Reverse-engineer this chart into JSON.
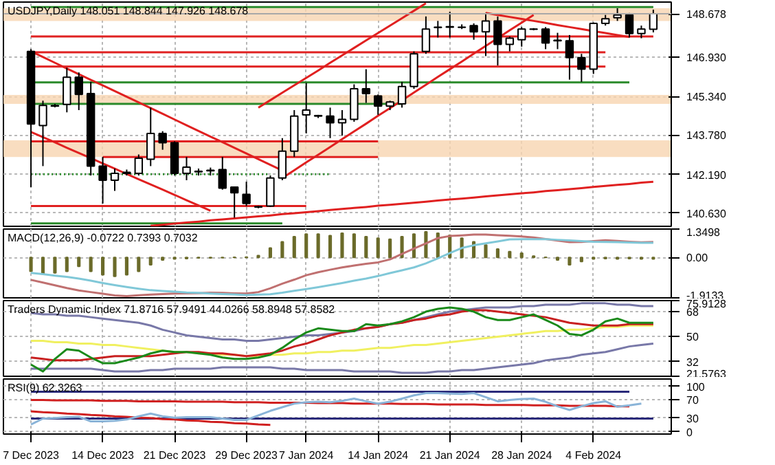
{
  "chart_data": [
    {
      "type": "candlestick",
      "title": "USDJPY,Daily  148.051 148.844 147.926 148.678",
      "ohlc": [
        [
          147.16,
          147.25,
          141.68,
          144.23
        ],
        [
          144.17,
          145.17,
          142.53,
          144.98
        ],
        [
          144.95,
          145.04,
          144.9,
          144.97
        ],
        [
          145.02,
          146.5,
          144.7,
          146.12
        ],
        [
          146.12,
          146.31,
          144.79,
          145.42
        ],
        [
          145.46,
          145.93,
          142.15,
          142.53
        ],
        [
          142.53,
          142.9,
          141.02,
          141.96
        ],
        [
          141.96,
          142.43,
          141.53,
          142.24
        ],
        [
          142.28,
          142.39,
          142.15,
          142.24
        ],
        [
          142.24,
          143.0,
          142.15,
          142.85
        ],
        [
          142.81,
          144.89,
          142.53,
          143.85
        ],
        [
          143.85,
          143.94,
          143.19,
          143.47
        ],
        [
          143.47,
          143.53,
          142.15,
          142.24
        ],
        [
          142.24,
          142.9,
          141.96,
          142.49
        ],
        [
          142.3,
          142.43,
          142.15,
          142.32
        ],
        [
          142.34,
          142.47,
          142.15,
          142.36
        ],
        [
          142.39,
          142.9,
          141.58,
          141.64
        ],
        [
          141.68,
          141.71,
          140.45,
          141.45
        ],
        [
          141.39,
          141.9,
          140.92,
          141.02
        ],
        [
          140.89,
          140.92,
          140.83,
          140.88
        ],
        [
          140.92,
          142.15,
          140.88,
          142.05
        ],
        [
          142.05,
          143.66,
          141.96,
          143.13
        ],
        [
          143.13,
          144.79,
          142.9,
          144.55
        ],
        [
          144.6,
          145.89,
          143.85,
          144.79
        ],
        [
          144.57,
          144.6,
          144.47,
          144.55
        ],
        [
          144.55,
          144.89,
          143.66,
          144.28
        ],
        [
          144.28,
          144.79,
          143.76,
          144.42
        ],
        [
          144.42,
          145.83,
          144.32,
          145.65
        ],
        [
          145.65,
          146.44,
          145.08,
          145.46
        ],
        [
          145.36,
          145.42,
          144.6,
          144.95
        ],
        [
          144.95,
          145.17,
          144.79,
          145.12
        ],
        [
          145.04,
          145.93,
          144.89,
          145.74
        ],
        [
          145.74,
          147.16,
          145.65,
          147.06
        ],
        [
          147.16,
          148.57,
          147.06,
          148.06
        ],
        [
          148.14,
          148.39,
          147.72,
          148.12
        ],
        [
          148.14,
          148.76,
          147.72,
          148.16
        ],
        [
          148.14,
          148.25,
          148.06,
          148.13
        ],
        [
          148.2,
          148.29,
          147.63,
          147.95
        ],
        [
          147.95,
          148.71,
          146.97,
          148.39
        ],
        [
          148.39,
          148.57,
          146.59,
          147.44
        ],
        [
          147.44,
          147.76,
          147.16,
          147.69
        ],
        [
          147.63,
          148.14,
          147.35,
          148.06
        ],
        [
          148.06,
          148.1,
          148.01,
          148.05
        ],
        [
          148.06,
          148.14,
          147.25,
          147.5
        ],
        [
          147.59,
          147.91,
          147.25,
          147.61
        ],
        [
          147.59,
          147.82,
          146.02,
          146.91
        ],
        [
          146.91,
          147.06,
          145.93,
          146.44
        ],
        [
          146.44,
          148.33,
          146.25,
          148.29
        ],
        [
          148.29,
          148.63,
          148.2,
          148.48
        ],
        [
          148.52,
          148.9,
          148.39,
          148.63
        ],
        [
          148.63,
          148.71,
          147.72,
          147.88
        ],
        [
          147.88,
          148.2,
          147.69,
          148.06
        ],
        [
          148.051,
          148.844,
          147.926,
          148.678
        ]
      ],
      "series": [
        {
          "type": "line",
          "color": "#2a8a2a",
          "values": [
            148.95,
            148.95,
            148.95,
            148.95,
            148.95,
            148.95,
            148.95,
            148.95,
            148.95,
            148.95,
            148.95,
            148.95,
            148.95,
            148.95,
            148.95,
            148.95,
            148.95,
            148.95,
            148.95,
            148.95,
            148.95,
            148.95,
            148.95,
            148.95,
            148.95,
            148.95,
            148.95,
            148.95,
            148.95,
            148.95,
            148.95,
            148.95,
            148.95,
            148.95,
            148.95,
            148.95,
            148.95,
            148.95,
            148.95,
            148.95,
            148.95,
            148.95,
            148.95,
            148.95,
            148.95,
            148.95,
            148.95,
            148.95,
            148.95,
            148.95,
            148.95,
            148.95,
            148.95
          ]
        },
        {
          "type": "line",
          "color": "#2a8a2a",
          "values": [
            145.91,
            145.91,
            145.91,
            145.91,
            145.91,
            145.91,
            145.91,
            145.91,
            145.91,
            145.91,
            145.91,
            145.91,
            145.91,
            145.91,
            145.91,
            145.91,
            145.91,
            145.91,
            145.91,
            145.91,
            145.91,
            145.91,
            145.91,
            145.91,
            145.91,
            145.91,
            145.91,
            145.91,
            145.91,
            145.91,
            145.91,
            145.91,
            145.91,
            145.91,
            145.91,
            145.91,
            145.91,
            145.91,
            145.91,
            145.91,
            145.91,
            145.91,
            145.91,
            145.91,
            145.91,
            145.91,
            145.91,
            145.91,
            145.91,
            145.91,
            145.91,
            null,
            null
          ]
        },
        {
          "type": "line",
          "color": "#2a8a2a",
          "values": [
            145.04,
            145.04,
            145.04,
            145.04,
            145.04,
            145.04,
            145.04,
            145.04,
            145.04,
            145.04,
            145.04,
            145.04,
            145.04,
            145.04,
            145.04,
            145.04,
            145.04,
            145.04,
            145.04,
            145.04,
            145.04,
            145.04,
            145.04,
            145.04,
            145.04,
            145.04,
            145.04,
            145.04,
            145.04,
            145.04,
            145.04,
            145.04,
            null,
            null,
            null,
            null,
            null,
            null,
            null,
            null,
            null,
            null,
            null,
            null,
            null,
            null,
            null,
            null,
            null,
            null,
            null,
            null,
            null
          ]
        },
        {
          "type": "line",
          "color": "#2a8a2a",
          "line_style": "dotted",
          "values": [
            142.2,
            142.2,
            142.2,
            142.2,
            142.2,
            142.2,
            142.2,
            142.2,
            142.2,
            142.2,
            142.2,
            142.2,
            142.2,
            142.2,
            142.2,
            142.2,
            142.2,
            142.2,
            142.2,
            142.2,
            142.2,
            null,
            142.2,
            142.2,
            142.2,
            142.2,
            null,
            null,
            null,
            null,
            null,
            null,
            null,
            null,
            null,
            null,
            null,
            null,
            null,
            null,
            null,
            null,
            null,
            null,
            null,
            null,
            null,
            null,
            null,
            null,
            null,
            null,
            null
          ]
        },
        {
          "type": "line",
          "color": "#2a8a2a",
          "values": [
            140.22,
            140.22,
            140.22,
            140.22,
            140.22,
            140.22,
            140.22,
            140.22,
            140.22,
            140.22,
            140.22,
            140.22,
            140.22,
            140.22,
            140.22,
            140.22,
            140.22,
            140.22,
            140.22,
            140.22,
            140.22,
            140.22,
            null,
            null,
            null,
            null,
            null,
            null,
            null,
            null,
            null,
            null,
            null,
            null,
            null,
            null,
            null,
            null,
            null,
            null,
            null,
            null,
            null,
            null,
            null,
            null,
            null,
            null,
            null,
            null,
            null,
            null,
            null
          ]
        },
        {
          "type": "line",
          "color": "#e02020",
          "values": [
            147.76,
            147.76,
            147.76,
            147.76,
            147.76,
            147.76,
            147.76,
            147.76,
            147.76,
            147.76,
            147.76,
            147.76,
            147.76,
            147.76,
            147.76,
            147.76,
            147.76,
            147.76,
            147.76,
            147.76,
            147.76,
            147.76,
            147.76,
            147.76,
            147.76,
            147.76,
            147.76,
            147.76,
            147.76,
            147.76,
            147.76,
            147.76,
            147.76,
            147.76,
            147.76,
            147.76,
            147.76,
            147.76,
            147.76,
            147.76,
            147.76,
            147.76,
            147.76,
            147.76,
            147.76,
            147.76,
            147.76,
            147.76,
            147.76,
            147.76,
            147.76,
            147.76,
            147.76
          ]
        },
        {
          "type": "line",
          "color": "#e02020",
          "values": [
            147.12,
            147.12,
            147.12,
            147.12,
            147.12,
            147.12,
            147.12,
            147.12,
            147.12,
            147.12,
            147.12,
            147.12,
            147.12,
            147.12,
            147.12,
            147.12,
            147.12,
            147.12,
            147.12,
            147.12,
            147.12,
            147.12,
            147.12,
            147.12,
            147.12,
            147.12,
            147.12,
            147.12,
            147.12,
            147.12,
            147.12,
            147.12,
            147.12,
            147.12,
            147.12,
            147.12,
            147.12,
            147.12,
            147.12,
            147.12,
            147.12,
            147.12,
            147.12,
            147.12,
            147.12,
            147.12,
            147.12,
            147.12,
            147.12,
            null,
            null,
            null,
            null
          ]
        },
        {
          "type": "line",
          "color": "#e02020",
          "values": [
            146.55,
            146.55,
            146.55,
            146.55,
            146.55,
            146.55,
            146.55,
            146.55,
            146.55,
            146.55,
            146.55,
            146.55,
            146.55,
            146.55,
            146.55,
            146.55,
            146.55,
            146.55,
            146.55,
            146.55,
            146.55,
            146.55,
            146.55,
            146.55,
            146.55,
            146.55,
            146.55,
            146.55,
            146.55,
            146.55,
            146.55,
            146.55,
            146.55,
            146.55,
            146.55,
            146.55,
            146.55,
            146.55,
            146.55,
            146.55,
            146.55,
            146.55,
            146.55,
            146.55,
            146.55,
            146.55,
            146.55,
            146.55,
            146.55,
            null,
            null,
            null,
            null
          ]
        },
        {
          "type": "line",
          "color": "#e02020",
          "values": [
            143.53,
            143.53,
            143.53,
            143.53,
            143.53,
            143.53,
            143.53,
            143.53,
            143.53,
            143.53,
            143.53,
            143.53,
            143.53,
            143.53,
            143.53,
            143.53,
            143.53,
            143.53,
            143.53,
            143.53,
            143.53,
            143.53,
            143.53,
            143.53,
            143.53,
            143.53,
            143.53,
            143.53,
            143.53,
            143.53,
            null,
            null,
            null,
            null,
            null,
            null,
            null,
            null,
            null,
            null,
            null,
            null,
            null,
            null,
            null,
            null,
            null,
            null,
            null,
            null,
            null,
            null,
            null
          ]
        },
        {
          "type": "line",
          "color": "#e02020",
          "values": [
            null,
            null,
            null,
            null,
            null,
            null,
            142.9,
            142.9,
            142.9,
            142.9,
            142.9,
            142.9,
            142.9,
            142.9,
            142.9,
            142.9,
            142.9,
            142.9,
            142.9,
            142.9,
            142.9,
            142.9,
            142.9,
            142.9,
            142.9,
            142.9,
            142.9,
            142.9,
            142.9,
            142.9,
            null,
            null,
            null,
            null,
            null,
            null,
            null,
            null,
            null,
            null,
            null,
            null,
            null,
            null,
            null,
            null,
            null,
            null,
            null,
            null,
            null,
            null,
            null
          ]
        },
        {
          "type": "line",
          "color": "#e02020",
          "values": [
            140.92,
            140.92,
            140.92,
            140.92,
            140.92,
            140.92,
            140.92,
            140.92,
            140.92,
            140.92,
            140.92,
            140.92,
            140.92,
            140.92,
            140.92,
            140.92,
            140.92,
            140.92,
            140.92,
            140.92,
            140.92,
            140.92,
            140.92,
            140.92,
            null,
            null,
            null,
            null,
            null,
            null,
            null,
            null,
            null,
            null,
            null,
            null,
            null,
            null,
            null,
            null,
            null,
            null,
            null,
            null,
            null,
            null,
            null,
            null,
            null,
            null,
            null,
            null,
            null
          ]
        },
        {
          "type": "line",
          "color": "#e02020",
          "values": [
            147.16,
            146.93,
            146.7,
            146.47,
            146.24,
            146.01,
            145.79,
            145.56,
            145.33,
            145.1,
            144.87,
            144.64,
            144.41,
            144.18,
            143.95,
            143.72,
            143.5,
            143.27,
            143.04,
            142.81,
            142.58,
            142.35,
            null,
            null,
            null,
            null,
            null,
            null,
            null,
            null,
            null,
            null,
            null,
            null,
            null,
            null,
            null,
            null,
            null,
            null,
            null,
            null,
            null,
            null,
            null,
            null,
            null,
            null,
            null,
            null,
            null,
            null,
            null
          ]
        },
        {
          "type": "line",
          "color": "#e02020",
          "values": [
            143.91,
            143.7,
            143.49,
            143.27,
            143.06,
            142.85,
            142.64,
            142.43,
            142.21,
            142.0,
            141.79,
            141.58,
            141.37,
            141.15,
            140.94,
            140.73,
            null,
            null,
            null,
            null,
            null,
            null,
            null,
            null,
            null,
            null,
            null,
            null,
            null,
            null,
            null,
            null,
            null,
            null,
            null,
            null,
            null,
            null,
            null,
            null,
            null,
            null,
            null,
            null,
            null,
            null,
            null,
            null,
            null,
            null,
            null,
            null,
            null
          ]
        },
        {
          "type": "line",
          "color": "#e02020",
          "values": [
            null,
            null,
            null,
            null,
            null,
            null,
            null,
            null,
            null,
            null,
            null,
            null,
            null,
            null,
            null,
            null,
            null,
            null,
            null,
            144.89,
            145.19,
            145.49,
            145.79,
            146.09,
            146.39,
            146.7,
            147.0,
            147.3,
            147.6,
            147.9,
            148.2,
            148.5,
            148.8,
            149.1,
            null,
            null,
            null,
            null,
            null,
            null,
            null,
            null,
            null,
            null,
            null,
            null,
            null,
            null,
            null,
            null,
            null,
            null,
            null
          ]
        },
        {
          "type": "line",
          "color": "#e02020",
          "values": [
            null,
            null,
            null,
            null,
            null,
            null,
            null,
            null,
            null,
            null,
            null,
            null,
            null,
            null,
            null,
            null,
            null,
            null,
            null,
            null,
            null,
            142.05,
            142.36,
            142.68,
            142.99,
            143.3,
            143.62,
            143.93,
            144.24,
            144.56,
            144.87,
            145.18,
            145.5,
            145.81,
            146.13,
            146.44,
            146.75,
            147.07,
            147.38,
            147.69,
            148.01,
            148.32,
            148.63,
            null,
            null,
            null,
            null,
            null,
            null,
            null,
            null,
            null,
            null
          ]
        },
        {
          "type": "line",
          "color": "#e02020",
          "values": [
            null,
            null,
            null,
            null,
            null,
            null,
            null,
            null,
            null,
            null,
            null,
            null,
            null,
            null,
            null,
            null,
            null,
            null,
            null,
            null,
            null,
            null,
            null,
            null,
            null,
            null,
            null,
            null,
            null,
            null,
            null,
            null,
            null,
            null,
            null,
            null,
            null,
            null,
            148.71,
            148.63,
            148.55,
            148.47,
            148.39,
            148.31,
            148.22,
            148.14,
            148.06,
            147.98,
            147.9,
            147.82,
            147.74,
            null,
            null
          ]
        },
        {
          "type": "line",
          "color": "#e02020",
          "values": [
            null,
            null,
            null,
            null,
            null,
            null,
            null,
            null,
            null,
            null,
            140.12,
            140.16,
            140.21,
            140.25,
            140.29,
            140.34,
            140.38,
            140.42,
            140.46,
            140.5,
            140.54,
            140.59,
            140.63,
            140.67,
            140.71,
            140.76,
            140.8,
            140.84,
            140.88,
            140.93,
            140.97,
            141.01,
            141.05,
            141.09,
            141.14,
            141.18,
            141.22,
            141.26,
            141.31,
            141.35,
            141.39,
            141.43,
            141.47,
            141.52,
            141.56,
            141.6,
            141.64,
            141.69,
            141.73,
            141.77,
            141.81,
            141.86,
            141.9
          ]
        }
      ],
      "bands": [
        {
          "axis": "y",
          "from": 145.04,
          "to": 145.4,
          "color": "#f8d4b0"
        },
        {
          "axis": "y",
          "from": 142.9,
          "to": 143.57,
          "color": "#f8d4b0"
        },
        {
          "axis": "y",
          "from": 148.39,
          "to": 148.9,
          "color": "#f8d4b0"
        }
      ],
      "ref_lines": [
        {
          "axis": "y",
          "value": 148.678,
          "label": "148.678",
          "color": "#a8a8a8"
        }
      ],
      "ylim": [
        140.1,
        149.15
      ],
      "yticks": [
        {
          "value": 146.93,
          "label": "146.930"
        },
        {
          "value": 145.34,
          "label": "145.340"
        },
        {
          "value": 143.78,
          "label": "143.780"
        },
        {
          "value": 142.19,
          "label": "142.190"
        },
        {
          "value": 140.63,
          "label": "140.630"
        }
      ],
      "grid": true,
      "tick_labels": "y"
    },
    {
      "type": "bar",
      "title": "MACD(12,26,9) -0.0722 0.7393 0.7032",
      "series": [
        {
          "type": "bar",
          "color": "#6b6b2a",
          "values": [
            -0.66,
            -0.78,
            -0.73,
            -0.66,
            -0.42,
            -0.66,
            -0.82,
            -0.89,
            -0.82,
            -0.66,
            -0.35,
            -0.12,
            -0.07,
            -0.05,
            -0.02,
            -0.02,
            -0.01,
            0.01,
            0.02,
            0.09,
            0.45,
            0.75,
            0.99,
            1.11,
            1.11,
            1.04,
            1.15,
            1.11,
            0.99,
            0.92,
            0.87,
            0.99,
            1.11,
            1.22,
            1.15,
            1.06,
            0.92,
            0.75,
            0.59,
            0.4,
            0.28,
            0.21,
            0.07,
            0.01,
            -0.12,
            -0.35,
            -0.19,
            -0.07,
            -0.05,
            -0.07,
            -0.05,
            -0.07,
            -0.07
          ]
        },
        {
          "type": "line",
          "color": "#c07070",
          "values": [
            -1.06,
            -1.19,
            -1.32,
            -1.45,
            -1.56,
            -1.64,
            -1.72,
            -1.8,
            -1.83,
            -1.79,
            -1.76,
            -1.73,
            -1.71,
            -1.7,
            -1.69,
            -1.67,
            -1.68,
            -1.7,
            -1.71,
            -1.64,
            -1.46,
            -1.24,
            -1.05,
            -0.84,
            -0.7,
            -0.58,
            -0.47,
            -0.38,
            -0.3,
            -0.23,
            -0.09,
            0.17,
            0.42,
            0.67,
            0.92,
            1.02,
            1.05,
            1.09,
            1.09,
            1.06,
            1.03,
            1.0,
            0.95,
            0.88,
            0.8,
            0.73,
            0.74,
            0.78,
            0.82,
            0.79,
            0.75,
            0.72,
            0.74
          ]
        },
        {
          "type": "line",
          "color": "#80c8d8",
          "values": [
            -0.73,
            -0.79,
            -0.86,
            -0.92,
            -1.0,
            -1.1,
            -1.21,
            -1.31,
            -1.4,
            -1.48,
            -1.55,
            -1.59,
            -1.62,
            -1.66,
            -1.68,
            -1.71,
            -1.73,
            -1.75,
            -1.78,
            -1.76,
            -1.74,
            -1.67,
            -1.58,
            -1.5,
            -1.41,
            -1.31,
            -1.21,
            -1.1,
            -1.0,
            -0.88,
            -0.74,
            -0.61,
            -0.47,
            -0.28,
            -0.04,
            0.21,
            0.45,
            0.58,
            0.67,
            0.76,
            0.86,
            0.87,
            0.87,
            0.87,
            0.84,
            0.81,
            0.78,
            0.75,
            0.74,
            0.73,
            0.71,
            0.7,
            0.7
          ]
        }
      ],
      "ylim": [
        -1.9133,
        1.3498
      ],
      "yticks": [
        1.3498,
        {
          "value": 0,
          "label": "0.00"
        },
        -1.9133
      ],
      "grid": true,
      "tick_labels": "y"
    },
    {
      "type": "line",
      "title": "Traders Dynamic Index 71.8716 57.9491 44.0266 58.8948 57.8582",
      "series": [
        {
          "color": "#7878a8",
          "values": [
            67,
            66,
            66,
            65,
            65,
            64,
            63,
            62,
            61,
            60,
            58,
            55,
            53,
            51,
            50,
            49,
            48,
            48,
            47,
            47,
            48,
            49,
            50,
            51,
            51,
            52,
            53,
            54,
            56,
            57,
            59,
            60,
            62,
            64,
            66,
            68,
            69,
            70,
            71,
            71,
            71,
            72,
            72,
            73,
            73,
            73,
            74,
            74,
            74,
            73,
            73,
            72,
            72
          ]
        },
        {
          "color": "#7878a8",
          "values": [
            27,
            27,
            27,
            27,
            27,
            27,
            26,
            25,
            25,
            25,
            26,
            26,
            27,
            27,
            27,
            27,
            28,
            28,
            28,
            28,
            28,
            27,
            27,
            26,
            26,
            26,
            26,
            25,
            25,
            25,
            25,
            24,
            24,
            24,
            25,
            25,
            26,
            26,
            27,
            28,
            29,
            30,
            31,
            33,
            34,
            35,
            37,
            38,
            39,
            41,
            43,
            44,
            45
          ]
        },
        {
          "color": "#f0f060",
          "values": [
            47,
            47,
            46,
            46,
            45,
            45,
            44,
            44,
            43,
            42,
            41,
            40,
            39,
            39,
            38,
            38,
            37,
            37,
            36,
            36,
            37,
            37,
            38,
            38,
            39,
            39,
            40,
            40,
            41,
            42,
            42,
            43,
            44,
            44,
            45,
            46,
            47,
            48,
            49,
            50,
            51,
            52,
            53,
            54,
            54,
            55,
            55,
            56,
            57,
            57,
            58,
            58,
            58
          ]
        },
        {
          "color": "#c82020",
          "values": [
            35,
            34,
            33,
            33,
            33,
            34,
            35,
            36,
            36,
            36,
            36,
            37,
            38,
            39,
            39,
            38,
            38,
            37,
            36,
            37,
            38,
            40,
            43,
            45,
            48,
            51,
            53,
            55,
            56,
            57,
            59,
            60,
            62,
            63,
            65,
            66,
            68,
            69,
            69,
            68,
            67,
            66,
            65,
            64,
            62,
            60,
            59,
            58,
            58,
            58,
            59,
            59,
            59
          ]
        },
        {
          "color": "#1a8a1a",
          "values": [
            30,
            25,
            34,
            41,
            40,
            35,
            31,
            31,
            33,
            35,
            38,
            40,
            39,
            39,
            38,
            37,
            35,
            34,
            34,
            35,
            37,
            42,
            48,
            53,
            56,
            55,
            54,
            54,
            59,
            58,
            59,
            61,
            64,
            68,
            70,
            71,
            70,
            68,
            64,
            62,
            62,
            64,
            66,
            62,
            58,
            52,
            51,
            55,
            61,
            63,
            60,
            60,
            60
          ]
        }
      ],
      "ylim": [
        21.5763,
        75.9128
      ],
      "yticks": [
        75.9128,
        68,
        50,
        32,
        21.5763
      ],
      "grid": true,
      "tick_labels": "y"
    },
    {
      "type": "line",
      "title": "RSI(9) 62.3263",
      "categories": [
        "7 Dec 2023",
        null,
        null,
        null,
        null,
        null,
        "14 Dec 2023",
        null,
        null,
        null,
        null,
        null,
        "21 Dec 2023",
        null,
        null,
        null,
        null,
        null,
        "29 Dec 2023",
        null,
        null,
        null,
        null,
        "7 Jan 2024",
        null,
        null,
        null,
        null,
        null,
        "14 Jan 2024",
        null,
        null,
        null,
        null,
        null,
        "21 Jan 2024",
        null,
        null,
        null,
        null,
        null,
        "28 Jan 2024",
        null,
        null,
        null,
        null,
        null,
        "4 Feb 2024",
        null,
        null,
        null,
        null,
        null
      ],
      "series": [
        {
          "color": "#2a2a7a",
          "values": [
            88,
            88,
            88,
            88,
            88,
            88,
            88,
            88,
            88,
            88,
            88,
            88,
            88,
            88,
            88,
            88,
            88,
            88,
            88,
            88,
            88,
            88,
            88,
            88,
            88,
            88,
            88,
            88,
            88,
            88,
            88,
            88,
            88,
            88,
            88,
            88,
            88,
            88,
            88,
            88,
            88,
            88,
            88,
            88,
            88,
            88,
            88,
            88,
            88,
            88,
            88,
            null,
            null
          ]
        },
        {
          "color": "#2a2a7a",
          "values": [
            29,
            29,
            29,
            29,
            29,
            29,
            29,
            29,
            29,
            29,
            29,
            29,
            29,
            29,
            29,
            29,
            29,
            29,
            29,
            29,
            29,
            29,
            29,
            29,
            29,
            29,
            29,
            29,
            29,
            29,
            29,
            29,
            29,
            29,
            29,
            29,
            29,
            29,
            29,
            29,
            29,
            29,
            29,
            29,
            29,
            29,
            29,
            29,
            29,
            29,
            29,
            29,
            29
          ]
        },
        {
          "color": "#d02020",
          "values": [
            70,
            70,
            69,
            69,
            69,
            69,
            68,
            68,
            68,
            67,
            67,
            67,
            67,
            66,
            66,
            66,
            66,
            65,
            65,
            65,
            64,
            64,
            64,
            64,
            63,
            63,
            63,
            62,
            62,
            62,
            62,
            61,
            61,
            61,
            60,
            60,
            60,
            60,
            59,
            59,
            59,
            59,
            58,
            58,
            58,
            57,
            57,
            57,
            57,
            56,
            56,
            null,
            null
          ]
        },
        {
          "color": "#d02020",
          "values": [
            45,
            43,
            42,
            40,
            39,
            37,
            36,
            34,
            33,
            31,
            30,
            28,
            27,
            25,
            24,
            22,
            21,
            19,
            18,
            16,
            15,
            null,
            null,
            null,
            null,
            null,
            null,
            null,
            null,
            null,
            null,
            null,
            null,
            null,
            null,
            null,
            null,
            null,
            null,
            null,
            null,
            null,
            null,
            null,
            null,
            null,
            null,
            null,
            null,
            null,
            null,
            null,
            null
          ]
        },
        {
          "color": "#8ab4d8",
          "values": [
            16,
            29,
            30,
            32,
            33,
            23,
            23,
            24,
            27,
            34,
            40,
            34,
            31,
            32,
            32,
            32,
            29,
            26,
            26,
            36,
            46,
            54,
            62,
            65,
            66,
            65,
            68,
            73,
            67,
            62,
            66,
            73,
            80,
            85,
            85,
            84,
            83,
            85,
            76,
            67,
            70,
            72,
            73,
            66,
            56,
            48,
            56,
            63,
            67,
            55,
            58,
            62,
            null
          ]
        }
      ],
      "ylim": [
        -5,
        116
      ],
      "yticks": [
        100,
        70,
        30,
        0
      ],
      "grid": true
    }
  ]
}
